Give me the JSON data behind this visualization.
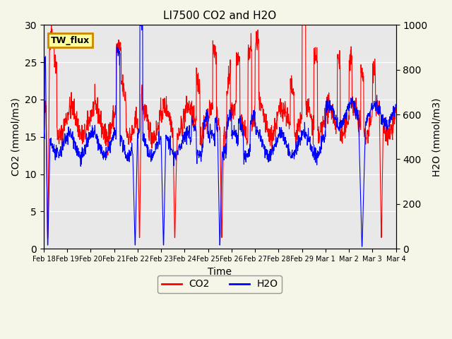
{
  "title": "LI7500 CO2 and H2O",
  "xlabel": "Time",
  "ylabel_left": "CO2 (mmol/m3)",
  "ylabel_right": "H2O (mmol/m3)",
  "ylim_left": [
    0,
    30
  ],
  "ylim_right": [
    0,
    1000
  ],
  "bg_color": "#e8e8e8",
  "fig_bg_color": "#f5f5e8",
  "co2_color": "red",
  "h2o_color": "blue",
  "tw_flux_label": "TW_flux",
  "legend_co2": "CO2",
  "legend_h2o": "H2O",
  "xtick_labels": [
    "Feb 18",
    "Feb 19",
    "Feb 20",
    "Feb 21",
    "Feb 22",
    "Feb 23",
    "Feb 24",
    "Feb 25",
    "Feb 26",
    "Feb 27",
    "Feb 28",
    "Feb 29",
    "Mar 1",
    "Mar 2",
    "Mar 3",
    "Mar 4"
  ]
}
